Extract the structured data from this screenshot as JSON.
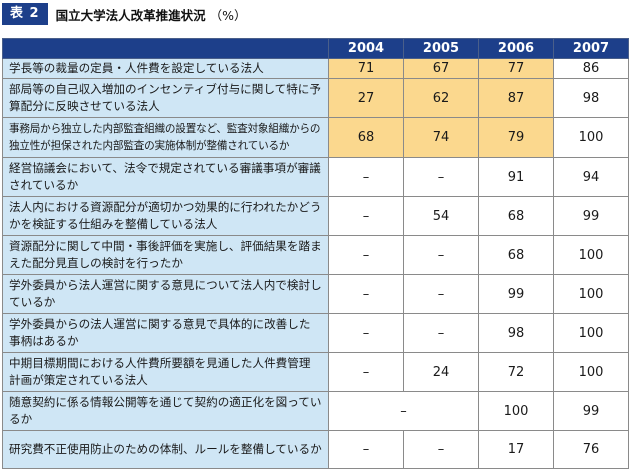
{
  "header": {
    "tag": "表 2",
    "title": "国立大学法人改革推進状況",
    "unit": "（%）"
  },
  "columns": [
    "2004",
    "2005",
    "2006",
    "2007"
  ],
  "rows": [
    {
      "label": "学長等の裁量の定員・人件費を設定している法人",
      "values": [
        "71",
        "67",
        "77",
        "86"
      ]
    },
    {
      "label": "部局等の自己収入増加のインセンティブ付与に関して特に予算配分に反映させている法人",
      "values": [
        "27",
        "62",
        "87",
        "98"
      ]
    },
    {
      "label": "事務局から独立した内部監査組織の設置など、監査対象組織からの独立性が担保された内部監査の実施体制が整備されているか",
      "values": [
        "68",
        "74",
        "79",
        "100"
      ]
    },
    {
      "label": "経営協議会において、法令で規定されている審議事項が審議されているか",
      "values": [
        "–",
        "–",
        "91",
        "94"
      ]
    },
    {
      "label": "法人内における資源配分が適切かつ効果的に行われたかどうかを検証する仕組みを整備している法人",
      "values": [
        "–",
        "54",
        "68",
        "99"
      ]
    },
    {
      "label": "資源配分に関して中間・事後評価を実施し、評価結果を踏まえた配分見直しの検討を行ったか",
      "values": [
        "–",
        "–",
        "68",
        "100"
      ]
    },
    {
      "label": "学外委員から法人運営に関する意見について法人内で検討しているか",
      "values": [
        "–",
        "–",
        "99",
        "100"
      ]
    },
    {
      "label": "学外委員からの法人運営に関する意見で具体的に改善した事柄はあるか",
      "values": [
        "–",
        "–",
        "98",
        "100"
      ]
    },
    {
      "label": "中期目標期間における人件費所要額を見通した人件費管理計画が策定されている法人",
      "values": [
        "–",
        "24",
        "72",
        "100"
      ]
    },
    {
      "label": "随意契約に係る情報公開等を通じて契約の適正化を図っているか",
      "values": [
        "–",
        "",
        "100",
        "99"
      ]
    },
    {
      "label": "研究費不正使用防止のための体制、ルールを整備しているか",
      "values": [
        "–",
        "–",
        "17",
        "76"
      ]
    }
  ],
  "colors": {
    "header_bg": "#1d3f8a",
    "label_bg": "#cfe6f5",
    "highlight_bg": "#fbd88e"
  }
}
